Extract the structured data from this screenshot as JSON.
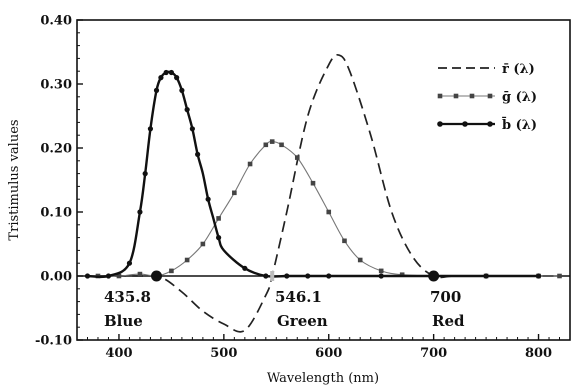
{
  "chart_data": {
    "type": "line",
    "xlabel": "Wavelength (nm)",
    "ylabel": "Tristimulus values",
    "xlim": [
      360,
      830
    ],
    "ylim": [
      -0.1,
      0.4
    ],
    "xticks": [
      400,
      500,
      600,
      700,
      800
    ],
    "yticks": [
      -0.1,
      0.0,
      0.1,
      0.2,
      0.3,
      0.4
    ],
    "ytick_labels": [
      "-0.10",
      "0.00",
      "0.10",
      "0.20",
      "0.30",
      "0.40"
    ],
    "grid": false,
    "legend_position": "top-right",
    "series": [
      {
        "name": "r̄ (λ)",
        "style": "dashed",
        "color": "#222222",
        "x": [
          380,
          420,
          440,
          460,
          480,
          500,
          520,
          540,
          546,
          560,
          580,
          600,
          610,
          620,
          640,
          660,
          680,
          700,
          720,
          760,
          820
        ],
        "y": [
          0.0,
          0.0,
          -0.002,
          -0.025,
          -0.055,
          -0.075,
          -0.085,
          -0.03,
          0.0,
          0.1,
          0.25,
          0.33,
          0.345,
          0.32,
          0.22,
          0.1,
          0.03,
          0.0,
          0.0,
          0.0,
          0.0
        ]
      },
      {
        "name": "ḡ (λ)",
        "style": "dotted-squares",
        "color": "#555555",
        "x": [
          380,
          400,
          420,
          435.8,
          450,
          465,
          480,
          495,
          510,
          525,
          540,
          546.1,
          555,
          570,
          585,
          600,
          615,
          630,
          650,
          670,
          700,
          750,
          800,
          820
        ],
        "y": [
          0.0,
          0.0,
          0.003,
          0.0,
          0.008,
          0.025,
          0.05,
          0.09,
          0.13,
          0.175,
          0.205,
          0.21,
          0.205,
          0.185,
          0.145,
          0.1,
          0.055,
          0.025,
          0.008,
          0.002,
          0.0,
          0.0,
          0.0,
          0.0
        ]
      },
      {
        "name": "b̄ (λ)",
        "style": "solid-circles",
        "color": "#111111",
        "x": [
          370,
          390,
          410,
          420,
          425,
          430,
          435.8,
          440,
          445,
          450,
          455,
          460,
          465,
          470,
          475,
          480,
          485,
          490,
          495,
          500,
          520,
          540,
          560,
          580,
          600,
          650,
          700,
          750,
          800
        ],
        "y": [
          0.0,
          0.0,
          0.02,
          0.1,
          0.16,
          0.23,
          0.29,
          0.31,
          0.318,
          0.318,
          0.31,
          0.29,
          0.26,
          0.23,
          0.19,
          0.16,
          0.12,
          0.09,
          0.06,
          0.04,
          0.012,
          0.0,
          0.0,
          0.0,
          0.0,
          0.0,
          0.0,
          0.0,
          0.0
        ]
      }
    ],
    "primaries": [
      {
        "wavelength": 435.8,
        "wavelength_label": "435.8",
        "name": "Blue"
      },
      {
        "wavelength": 546.1,
        "wavelength_label": "546.1",
        "name": "Green"
      },
      {
        "wavelength": 700,
        "wavelength_label": "700",
        "name": "Red"
      }
    ]
  }
}
